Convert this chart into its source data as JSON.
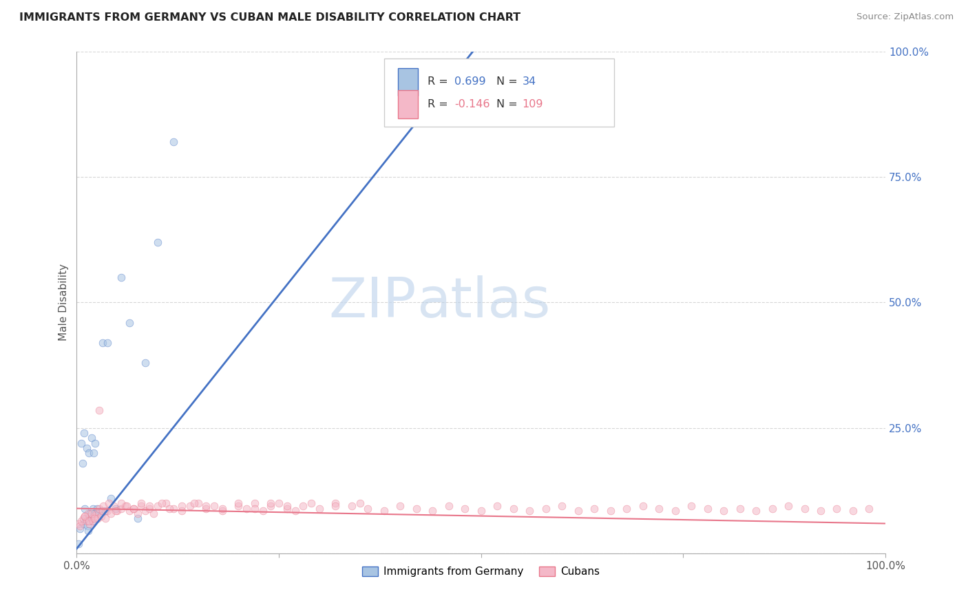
{
  "title": "IMMIGRANTS FROM GERMANY VS CUBAN MALE DISABILITY CORRELATION CHART",
  "source": "Source: ZipAtlas.com",
  "ylabel": "Male Disability",
  "legend_entries": [
    {
      "label": "Immigrants from Germany",
      "R": "0.699",
      "N": "34",
      "color": "#a8c4e2",
      "line_color": "#4472c4"
    },
    {
      "label": "Cubans",
      "R": "-0.146",
      "N": "109",
      "color": "#f4b8c8",
      "line_color": "#e8768a"
    }
  ],
  "watermark_zip": "ZIP",
  "watermark_atlas": "atlas",
  "background_color": "#ffffff",
  "grid_color": "#cccccc",
  "germany_scatter_x": [
    0.002,
    0.004,
    0.006,
    0.007,
    0.008,
    0.009,
    0.01,
    0.011,
    0.012,
    0.013,
    0.014,
    0.015,
    0.016,
    0.017,
    0.018,
    0.019,
    0.02,
    0.021,
    0.022,
    0.023,
    0.025,
    0.027,
    0.03,
    0.032,
    0.035,
    0.038,
    0.042,
    0.048,
    0.055,
    0.065,
    0.075,
    0.085,
    0.1,
    0.12
  ],
  "germany_scatter_y": [
    0.02,
    0.05,
    0.22,
    0.18,
    0.06,
    0.24,
    0.09,
    0.07,
    0.21,
    0.055,
    0.045,
    0.2,
    0.075,
    0.08,
    0.23,
    0.065,
    0.09,
    0.2,
    0.08,
    0.22,
    0.09,
    0.08,
    0.085,
    0.42,
    0.085,
    0.42,
    0.11,
    0.09,
    0.55,
    0.46,
    0.07,
    0.38,
    0.62,
    0.82
  ],
  "cuba_scatter_x": [
    0.002,
    0.004,
    0.006,
    0.008,
    0.01,
    0.012,
    0.014,
    0.016,
    0.018,
    0.02,
    0.022,
    0.024,
    0.026,
    0.028,
    0.03,
    0.032,
    0.035,
    0.038,
    0.042,
    0.046,
    0.05,
    0.055,
    0.06,
    0.065,
    0.07,
    0.075,
    0.08,
    0.085,
    0.09,
    0.095,
    0.1,
    0.11,
    0.12,
    0.13,
    0.14,
    0.15,
    0.16,
    0.17,
    0.18,
    0.2,
    0.21,
    0.22,
    0.23,
    0.24,
    0.25,
    0.26,
    0.27,
    0.28,
    0.3,
    0.32,
    0.34,
    0.36,
    0.38,
    0.4,
    0.42,
    0.44,
    0.46,
    0.48,
    0.5,
    0.52,
    0.54,
    0.56,
    0.58,
    0.6,
    0.62,
    0.64,
    0.66,
    0.68,
    0.7,
    0.72,
    0.74,
    0.76,
    0.78,
    0.8,
    0.82,
    0.84,
    0.86,
    0.88,
    0.9,
    0.92,
    0.94,
    0.96,
    0.98,
    0.01,
    0.015,
    0.018,
    0.022,
    0.028,
    0.033,
    0.04,
    0.048,
    0.055,
    0.062,
    0.07,
    0.08,
    0.09,
    0.105,
    0.115,
    0.13,
    0.145,
    0.16,
    0.18,
    0.2,
    0.22,
    0.24,
    0.26,
    0.29,
    0.32,
    0.35
  ],
  "cuba_scatter_y": [
    0.06,
    0.055,
    0.065,
    0.07,
    0.075,
    0.065,
    0.08,
    0.06,
    0.07,
    0.065,
    0.075,
    0.08,
    0.07,
    0.09,
    0.075,
    0.085,
    0.07,
    0.085,
    0.08,
    0.095,
    0.085,
    0.09,
    0.095,
    0.085,
    0.09,
    0.08,
    0.095,
    0.085,
    0.09,
    0.08,
    0.095,
    0.1,
    0.09,
    0.085,
    0.095,
    0.1,
    0.09,
    0.095,
    0.085,
    0.095,
    0.09,
    0.1,
    0.085,
    0.095,
    0.1,
    0.09,
    0.085,
    0.095,
    0.09,
    0.1,
    0.095,
    0.09,
    0.085,
    0.095,
    0.09,
    0.085,
    0.095,
    0.09,
    0.085,
    0.095,
    0.09,
    0.085,
    0.09,
    0.095,
    0.085,
    0.09,
    0.085,
    0.09,
    0.095,
    0.09,
    0.085,
    0.095,
    0.09,
    0.085,
    0.09,
    0.085,
    0.09,
    0.095,
    0.09,
    0.085,
    0.09,
    0.085,
    0.09,
    0.075,
    0.065,
    0.08,
    0.07,
    0.285,
    0.095,
    0.1,
    0.085,
    0.1,
    0.095,
    0.09,
    0.1,
    0.095,
    0.1,
    0.09,
    0.095,
    0.1,
    0.095,
    0.09,
    0.1,
    0.09,
    0.1,
    0.095,
    0.1,
    0.095,
    0.1
  ],
  "germany_line_x": [
    0.0,
    0.5
  ],
  "germany_line_y": [
    0.01,
    1.02
  ],
  "cuba_line_x": [
    0.0,
    1.0
  ],
  "cuba_line_y": [
    0.09,
    0.06
  ],
  "xlim": [
    0.0,
    1.0
  ],
  "ylim": [
    0.0,
    1.0
  ],
  "scatter_alpha": 0.55,
  "scatter_size": 60
}
